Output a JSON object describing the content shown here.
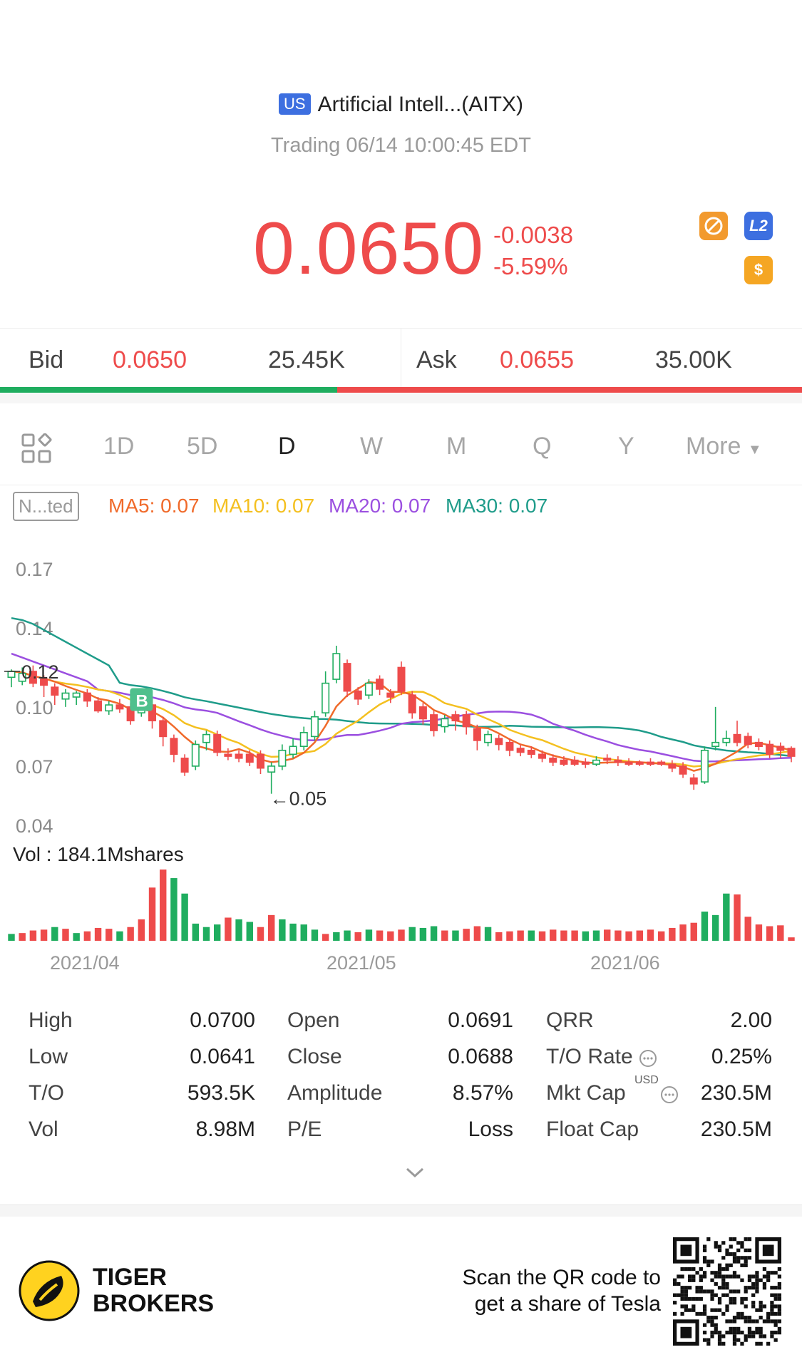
{
  "header": {
    "market_badge": "US",
    "title": "Artificial Intell...(AITX)",
    "status": "Trading 06/14 10:00:45 EDT"
  },
  "quote": {
    "price": "0.0650",
    "change": "-0.0038",
    "change_pct": "-5.59%",
    "badges": [
      {
        "name": "no-trading-icon",
        "color": "#f29a2e"
      },
      {
        "name": "level2-badge",
        "text": "L2",
        "color": "#3d6fe0"
      },
      {
        "name": "dollar-badge",
        "text": "$",
        "color": "#f5a623"
      }
    ]
  },
  "order_book": {
    "bid_label": "Bid",
    "bid_price": "0.0650",
    "bid_size": "25.45K",
    "ask_label": "Ask",
    "ask_price": "0.0655",
    "ask_size": "35.00K",
    "bid_ratio": 0.42
  },
  "periods": {
    "items": [
      "1D",
      "5D",
      "D",
      "W",
      "M",
      "Q",
      "Y",
      "More"
    ],
    "selected": "D"
  },
  "indicators": {
    "adjust_label": "N...ted",
    "ma5": "MA5: 0.07",
    "ma10": "MA10: 0.07",
    "ma20": "MA20: 0.07",
    "ma30": "MA30: 0.07",
    "colors": {
      "ma5": "#f06a2a",
      "ma10": "#f4c020",
      "ma20": "#9b4fe0",
      "ma30": "#1f9c8a",
      "up": "#1fad5f",
      "down": "#ee4b4b"
    }
  },
  "chart_data": {
    "type": "candlestick",
    "y_ticks": [
      "0.17",
      "0.14",
      "0.10",
      "0.07",
      "0.04"
    ],
    "ylim": [
      0.04,
      0.17
    ],
    "x_ticks": [
      "2021/04",
      "2021/05",
      "2021/06"
    ],
    "high_marker": "0.12",
    "low_marker": "←0.05",
    "buy_marker": "B",
    "volume_label": "Vol  : 184.1Mshares",
    "candles": [
      [
        0.115,
        0.118,
        0.119,
        0.11
      ],
      [
        0.113,
        0.117,
        0.12,
        0.111
      ],
      [
        0.118,
        0.112,
        0.121,
        0.11
      ],
      [
        0.114,
        0.111,
        0.116,
        0.105
      ],
      [
        0.11,
        0.106,
        0.112,
        0.101
      ],
      [
        0.104,
        0.107,
        0.109,
        0.1
      ],
      [
        0.105,
        0.107,
        0.108,
        0.101
      ],
      [
        0.107,
        0.103,
        0.109,
        0.1
      ],
      [
        0.103,
        0.098,
        0.105,
        0.097
      ],
      [
        0.098,
        0.101,
        0.103,
        0.096
      ],
      [
        0.101,
        0.099,
        0.104,
        0.097
      ],
      [
        0.1,
        0.093,
        0.102,
        0.091
      ],
      [
        0.097,
        0.103,
        0.108,
        0.095
      ],
      [
        0.101,
        0.093,
        0.104,
        0.089
      ],
      [
        0.093,
        0.085,
        0.095,
        0.08
      ],
      [
        0.084,
        0.076,
        0.086,
        0.072
      ],
      [
        0.074,
        0.067,
        0.076,
        0.065
      ],
      [
        0.07,
        0.081,
        0.083,
        0.068
      ],
      [
        0.082,
        0.086,
        0.088,
        0.078
      ],
      [
        0.086,
        0.077,
        0.088,
        0.075
      ],
      [
        0.076,
        0.075,
        0.079,
        0.073
      ],
      [
        0.076,
        0.074,
        0.078,
        0.072
      ],
      [
        0.076,
        0.072,
        0.078,
        0.07
      ],
      [
        0.076,
        0.069,
        0.078,
        0.066
      ],
      [
        0.067,
        0.07,
        0.072,
        0.056
      ],
      [
        0.07,
        0.078,
        0.081,
        0.068
      ],
      [
        0.076,
        0.08,
        0.084,
        0.074
      ],
      [
        0.08,
        0.087,
        0.09,
        0.078
      ],
      [
        0.085,
        0.095,
        0.098,
        0.083
      ],
      [
        0.097,
        0.112,
        0.118,
        0.095
      ],
      [
        0.114,
        0.127,
        0.131,
        0.112
      ],
      [
        0.122,
        0.108,
        0.124,
        0.105
      ],
      [
        0.108,
        0.104,
        0.11,
        0.101
      ],
      [
        0.106,
        0.112,
        0.114,
        0.104
      ],
      [
        0.114,
        0.109,
        0.116,
        0.106
      ],
      [
        0.107,
        0.105,
        0.109,
        0.102
      ],
      [
        0.12,
        0.108,
        0.123,
        0.106
      ],
      [
        0.106,
        0.097,
        0.108,
        0.094
      ],
      [
        0.1,
        0.094,
        0.102,
        0.091
      ],
      [
        0.096,
        0.088,
        0.098,
        0.085
      ],
      [
        0.09,
        0.094,
        0.096,
        0.087
      ],
      [
        0.096,
        0.093,
        0.098,
        0.088
      ],
      [
        0.096,
        0.09,
        0.098,
        0.086
      ],
      [
        0.089,
        0.083,
        0.091,
        0.078
      ],
      [
        0.082,
        0.086,
        0.088,
        0.08
      ],
      [
        0.084,
        0.081,
        0.086,
        0.078
      ],
      [
        0.082,
        0.078,
        0.084,
        0.075
      ],
      [
        0.079,
        0.077,
        0.081,
        0.075
      ],
      [
        0.078,
        0.076,
        0.08,
        0.074
      ],
      [
        0.076,
        0.074,
        0.078,
        0.072
      ],
      [
        0.074,
        0.072,
        0.076,
        0.07
      ],
      [
        0.073,
        0.071,
        0.075,
        0.07
      ],
      [
        0.073,
        0.071,
        0.075,
        0.07
      ],
      [
        0.072,
        0.071,
        0.074,
        0.069
      ],
      [
        0.071,
        0.073,
        0.075,
        0.07
      ],
      [
        0.074,
        0.073,
        0.076,
        0.071
      ],
      [
        0.073,
        0.072,
        0.075,
        0.07
      ],
      [
        0.072,
        0.071,
        0.074,
        0.07
      ],
      [
        0.072,
        0.071,
        0.073,
        0.07
      ],
      [
        0.072,
        0.071,
        0.074,
        0.07
      ],
      [
        0.072,
        0.071,
        0.073,
        0.07
      ],
      [
        0.071,
        0.069,
        0.073,
        0.067
      ],
      [
        0.07,
        0.066,
        0.072,
        0.064
      ],
      [
        0.064,
        0.061,
        0.066,
        0.058
      ],
      [
        0.062,
        0.078,
        0.08,
        0.061
      ],
      [
        0.08,
        0.082,
        0.1,
        0.078
      ],
      [
        0.082,
        0.084,
        0.088,
        0.08
      ],
      [
        0.086,
        0.082,
        0.093,
        0.08
      ],
      [
        0.085,
        0.081,
        0.087,
        0.079
      ],
      [
        0.082,
        0.08,
        0.084,
        0.078
      ],
      [
        0.081,
        0.076,
        0.083,
        0.074
      ],
      [
        0.08,
        0.078,
        0.082,
        0.074
      ],
      [
        0.079,
        0.075,
        0.08,
        0.072
      ]
    ],
    "volumes": [
      8,
      9,
      12,
      13,
      16,
      14,
      9,
      11,
      15,
      14,
      11,
      16,
      25,
      62,
      83,
      73,
      55,
      20,
      16,
      19,
      27,
      25,
      22,
      16,
      30,
      25,
      20,
      19,
      13,
      8,
      10,
      12,
      10,
      13,
      12,
      11,
      13,
      16,
      15,
      17,
      12,
      12,
      14,
      17,
      16,
      10,
      11,
      12,
      12,
      11,
      13,
      12,
      12,
      11,
      12,
      13,
      12,
      11,
      12,
      13,
      11,
      15,
      19,
      21,
      34,
      30,
      55,
      54,
      28,
      19,
      17,
      18,
      4
    ],
    "volume_colors": [
      "up",
      "down",
      "down",
      "down",
      "up",
      "down",
      "up",
      "down",
      "down",
      "down",
      "up",
      "down",
      "down",
      "down",
      "down",
      "up",
      "up",
      "up",
      "up",
      "up",
      "down",
      "up",
      "up",
      "down",
      "down",
      "up",
      "up",
      "up",
      "up",
      "down",
      "up",
      "up",
      "down",
      "up",
      "down",
      "down",
      "down",
      "up",
      "up",
      "up",
      "down",
      "up",
      "down",
      "down",
      "up",
      "down",
      "down",
      "down",
      "up",
      "down",
      "down",
      "down",
      "down",
      "up",
      "up",
      "down",
      "down",
      "down",
      "down",
      "down",
      "down",
      "down",
      "down",
      "down",
      "up",
      "up",
      "up",
      "down",
      "down",
      "down",
      "down",
      "down",
      "down"
    ]
  },
  "stats": [
    {
      "label": "High",
      "value": "0.0700"
    },
    {
      "label": "Low",
      "value": "0.0641"
    },
    {
      "label": "T/O",
      "value": "593.5K"
    },
    {
      "label": "Vol",
      "value": "8.98M"
    },
    {
      "label": "Open",
      "value": "0.0691"
    },
    {
      "label": "Close",
      "value": "0.0688"
    },
    {
      "label": "Amplitude",
      "value": "8.57%"
    },
    {
      "label": "P/E",
      "value": "Loss"
    },
    {
      "label": "QRR",
      "value": "2.00"
    },
    {
      "label": "T/O Rate",
      "value": "0.25%"
    },
    {
      "label": "Mkt Cap",
      "value": "230.5M"
    },
    {
      "label": "Float Cap",
      "value": "230.5M"
    }
  ],
  "stats_extra": {
    "mkt_cap_currency": "USD"
  },
  "footer": {
    "brand_line1": "TIGER",
    "brand_line2": "BROKERS",
    "promo_line1": "Scan the QR code to",
    "promo_line2": "get a share of Tesla"
  }
}
